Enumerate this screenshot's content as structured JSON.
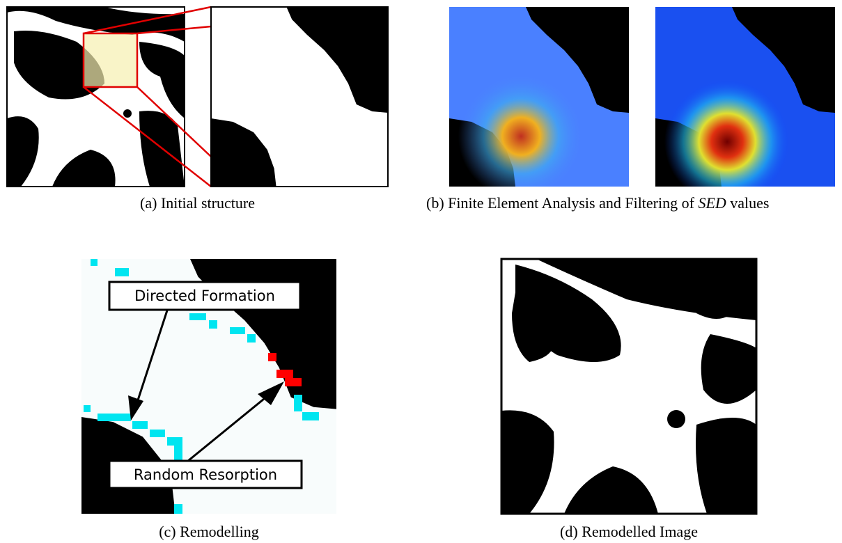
{
  "panels": [
    {
      "label": "(a)",
      "caption": "Initial structure"
    },
    {
      "label": "(b)",
      "caption": [
        "Finite Element Analysis and Filtering of",
        "SED",
        "values"
      ]
    },
    {
      "label": "(c)",
      "caption": "Remodelling",
      "callouts": [
        "Directed Formation",
        "Random Resorption"
      ]
    },
    {
      "label": "(d)",
      "caption": "Remodelled Image"
    }
  ]
}
